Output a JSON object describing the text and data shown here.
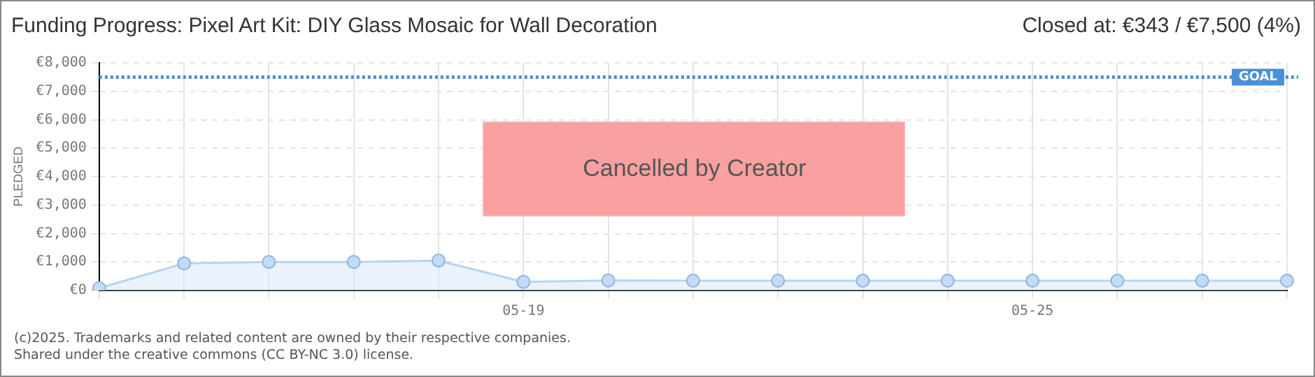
{
  "chart_data": {
    "type": "area",
    "title": "Funding Progress: Pixel Art Kit: DIY Glass Mosaic for Wall Decoration",
    "subtitle": "Closed at: €343 / €7,500 (4%)",
    "ylabel": "PLEDGED",
    "categories": [
      null,
      null,
      null,
      null,
      null,
      "05-19",
      null,
      null,
      null,
      null,
      null,
      "05-25",
      null,
      null,
      null
    ],
    "series": [
      {
        "color": "#b8d4f0",
        "values": [
          80,
          950,
          1000,
          1000,
          1050,
          300,
          350,
          343,
          343,
          343,
          343,
          343,
          343,
          343,
          343
        ]
      }
    ],
    "ylim": [
      0,
      8000
    ],
    "yticks": [
      {
        "value": 0,
        "label": "€0"
      },
      {
        "value": 1000,
        "label": "€1,000"
      },
      {
        "value": 2000,
        "label": "€2,000"
      },
      {
        "value": 3000,
        "label": "€3,000"
      },
      {
        "value": 4000,
        "label": "€4,000"
      },
      {
        "value": 5000,
        "label": "€5,000"
      },
      {
        "value": 6000,
        "label": "€6,000"
      },
      {
        "value": 7000,
        "label": "€7,000"
      },
      {
        "value": 8000,
        "label": "€8,000"
      }
    ],
    "ref_lines": [
      {
        "axis": "y",
        "value": 7500,
        "label": "GOAL",
        "color": "#4a90d9",
        "line_style": "dotted"
      }
    ],
    "grid": true,
    "marker": "circle",
    "legend": false,
    "annotations": [
      "Cancelled by Creator",
      "(c)2025. Trademarks and related content are owned by their respective companies.",
      "Shared under the creative commons (CC BY-NC 3.0) license."
    ]
  }
}
